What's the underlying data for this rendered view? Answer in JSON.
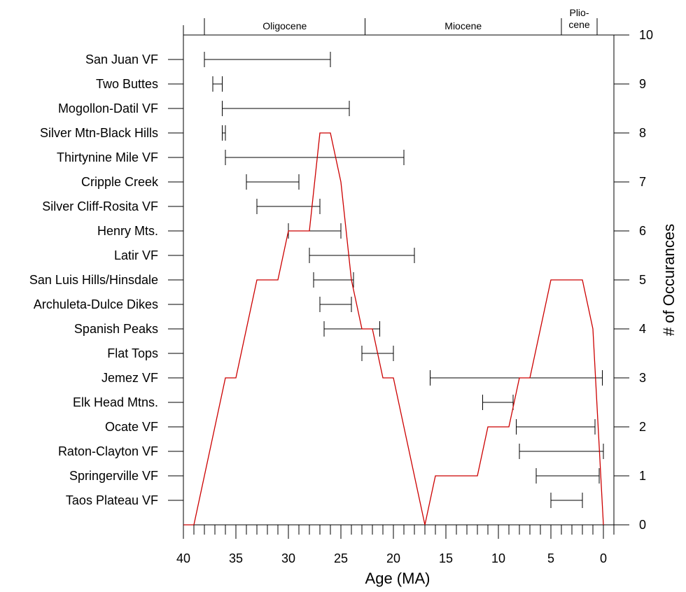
{
  "chart_data": {
    "type": "line",
    "xlabel": "Age (MA)",
    "ylabel": "# of Occurances",
    "x_reversed": true,
    "xlim": [
      40,
      -1
    ],
    "x_ticks": [
      "40",
      "35",
      "30",
      "25",
      "20",
      "15",
      "10",
      "5",
      "0"
    ],
    "ylim": [
      0,
      10
    ],
    "y_ticks": [
      "0",
      "1",
      "2",
      "3",
      "4",
      "5",
      "6",
      "7",
      "8",
      "9",
      "10"
    ],
    "grid": false,
    "epochs": [
      {
        "name": "Oligocene",
        "lines": [
          "Oligocene"
        ],
        "start": 38,
        "end": 22.7
      },
      {
        "name": "Miocene",
        "lines": [
          "Miocene"
        ],
        "start": 22.7,
        "end": 4
      },
      {
        "name": "Pliocene",
        "lines": [
          "Plio-",
          "cene"
        ],
        "start": 4,
        "end": 0.6
      }
    ],
    "ranges": [
      {
        "name": "San Juan VF",
        "start": 38,
        "end": 26
      },
      {
        "name": "Two Buttes",
        "start": 37.2,
        "end": 36.3
      },
      {
        "name": "Mogollon-Datil VF",
        "start": 36.3,
        "end": 24.2
      },
      {
        "name": "Silver Mtn-Black Hills",
        "start": 36.3,
        "end": 36
      },
      {
        "name": "Thirtynine Mile VF",
        "start": 36,
        "end": 19
      },
      {
        "name": "Cripple Creek",
        "start": 34,
        "end": 29
      },
      {
        "name": "Silver Cliff-Rosita VF",
        "start": 33,
        "end": 27
      },
      {
        "name": "Henry Mts.",
        "start": 30,
        "end": 25
      },
      {
        "name": "Latir VF",
        "start": 28,
        "end": 18
      },
      {
        "name": "San Luis Hills/Hinsdale",
        "start": 27.6,
        "end": 23.8
      },
      {
        "name": "Archuleta-Dulce Dikes",
        "start": 27,
        "end": 24
      },
      {
        "name": "Spanish Peaks",
        "start": 26.6,
        "end": 21.3
      },
      {
        "name": "Flat Tops",
        "start": 23,
        "end": 20
      },
      {
        "name": "Jemez VF",
        "start": 16.5,
        "end": 0.1
      },
      {
        "name": "Elk Head Mtns.",
        "start": 11.5,
        "end": 8.6
      },
      {
        "name": "Ocate VF",
        "start": 8.3,
        "end": 0.8
      },
      {
        "name": "Raton-Clayton VF",
        "start": 8,
        "end": 0
      },
      {
        "name": "Springerville VF",
        "start": 6.4,
        "end": 0.4
      },
      {
        "name": "Taos Plateau VF",
        "start": 5,
        "end": 2
      }
    ],
    "series": [
      {
        "color": "#cc0000",
        "x": [
          40,
          39,
          36,
          35,
          33,
          31,
          30,
          28,
          27,
          26,
          25,
          24,
          23,
          22,
          21,
          20,
          17,
          16,
          12,
          11,
          9,
          8,
          7,
          5,
          2,
          1,
          0
        ],
        "y": [
          0,
          0,
          3,
          3,
          5,
          5,
          6,
          6,
          8,
          8,
          7,
          5,
          4,
          4,
          3,
          3,
          0,
          1,
          1,
          2,
          2,
          3,
          3,
          5,
          5,
          4,
          0
        ]
      }
    ]
  }
}
